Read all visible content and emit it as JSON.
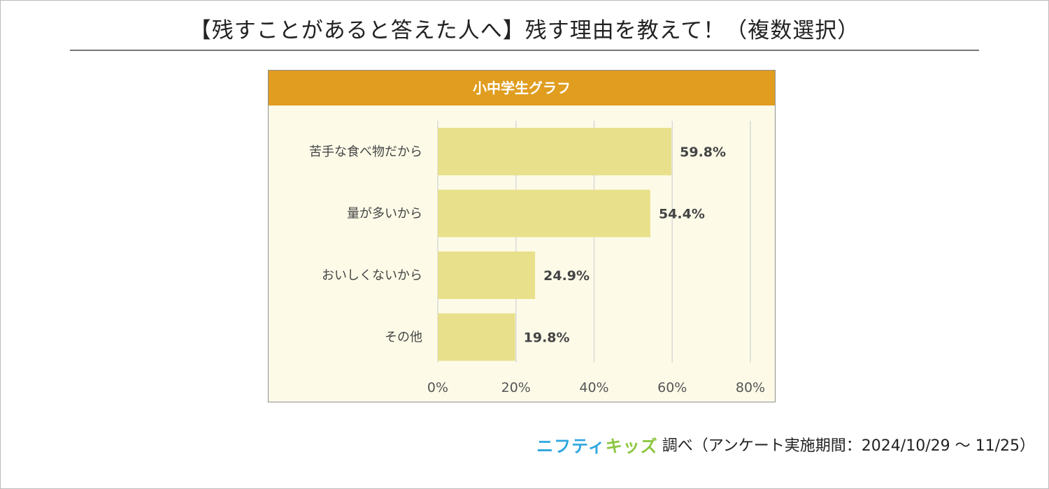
{
  "title": "【残すことがあると答えた人へ】残す理由を教えて！（複数選択）",
  "chart_data": {
    "type": "bar",
    "orientation": "horizontal",
    "title": "小中学生グラフ",
    "categories": [
      "苦手な食べ物だから",
      "量が多いから",
      "おいしくないから",
      "その他"
    ],
    "values": [
      59.8,
      54.4,
      24.9,
      19.8
    ],
    "value_labels": [
      "59.8%",
      "54.4%",
      "24.9%",
      "19.8%"
    ],
    "xlim": [
      0,
      80
    ],
    "xticks": [
      0,
      20,
      40,
      60,
      80
    ],
    "xtick_labels": [
      "0%",
      "20%",
      "40%",
      "60%",
      "80%"
    ],
    "grid": "vertical",
    "colors": {
      "bar": "#e9e08c",
      "header": "#e09d1f",
      "plot_bg": "#fdfbe8",
      "grid": "#d9d9d9"
    }
  },
  "footer": {
    "logo_part1": "ニフティ",
    "logo_part2": "キッズ",
    "text": "調べ（アンケート実施期間：2024/10/29 ～ 11/25）"
  }
}
